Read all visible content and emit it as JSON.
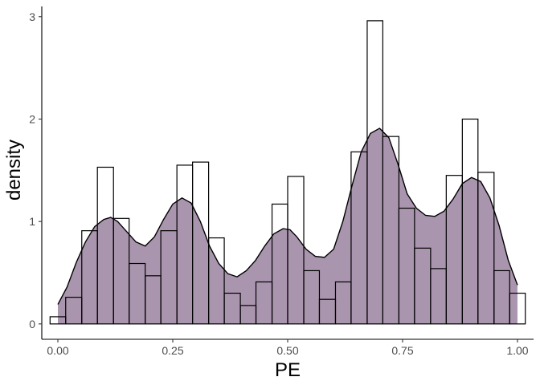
{
  "chart_data": {
    "type": "histogram-density",
    "title": "",
    "xlabel": "PE",
    "ylabel": "density",
    "xlim": [
      -0.035,
      1.035
    ],
    "ylim": [
      -0.15,
      3.1
    ],
    "x_ticks": [
      0.0,
      0.25,
      0.5,
      0.75,
      1.0
    ],
    "x_tick_labels": [
      "0.00",
      "0.25",
      "0.50",
      "0.75",
      "1.00"
    ],
    "y_ticks": [
      0,
      1,
      2,
      3
    ],
    "y_tick_labels": [
      "0",
      "1",
      "2",
      "3"
    ],
    "grid": false,
    "bin_width": 0.0345,
    "bins": [
      {
        "x0": -0.017,
        "x1": 0.017,
        "density": 0.07
      },
      {
        "x0": 0.017,
        "x1": 0.052,
        "density": 0.26
      },
      {
        "x0": 0.052,
        "x1": 0.086,
        "density": 0.91
      },
      {
        "x0": 0.086,
        "x1": 0.121,
        "density": 1.53
      },
      {
        "x0": 0.121,
        "x1": 0.155,
        "density": 1.03
      },
      {
        "x0": 0.155,
        "x1": 0.19,
        "density": 0.59
      },
      {
        "x0": 0.19,
        "x1": 0.224,
        "density": 0.47
      },
      {
        "x0": 0.224,
        "x1": 0.259,
        "density": 0.91
      },
      {
        "x0": 0.259,
        "x1": 0.293,
        "density": 1.55
      },
      {
        "x0": 0.293,
        "x1": 0.328,
        "density": 1.58
      },
      {
        "x0": 0.328,
        "x1": 0.362,
        "density": 0.84
      },
      {
        "x0": 0.362,
        "x1": 0.397,
        "density": 0.3
      },
      {
        "x0": 0.397,
        "x1": 0.431,
        "density": 0.18
      },
      {
        "x0": 0.431,
        "x1": 0.466,
        "density": 0.41
      },
      {
        "x0": 0.466,
        "x1": 0.5,
        "density": 1.17
      },
      {
        "x0": 0.5,
        "x1": 0.535,
        "density": 1.44
      },
      {
        "x0": 0.535,
        "x1": 0.569,
        "density": 0.52
      },
      {
        "x0": 0.569,
        "x1": 0.604,
        "density": 0.24
      },
      {
        "x0": 0.604,
        "x1": 0.638,
        "density": 0.41
      },
      {
        "x0": 0.638,
        "x1": 0.673,
        "density": 1.68
      },
      {
        "x0": 0.673,
        "x1": 0.707,
        "density": 2.96
      },
      {
        "x0": 0.707,
        "x1": 0.742,
        "density": 1.83
      },
      {
        "x0": 0.742,
        "x1": 0.776,
        "density": 1.13
      },
      {
        "x0": 0.776,
        "x1": 0.811,
        "density": 0.74
      },
      {
        "x0": 0.811,
        "x1": 0.845,
        "density": 0.54
      },
      {
        "x0": 0.845,
        "x1": 0.88,
        "density": 1.45
      },
      {
        "x0": 0.88,
        "x1": 0.914,
        "density": 2.0
      },
      {
        "x0": 0.914,
        "x1": 0.949,
        "density": 1.48
      },
      {
        "x0": 0.949,
        "x1": 0.983,
        "density": 0.52
      },
      {
        "x0": 0.983,
        "x1": 1.017,
        "density": 0.3
      }
    ],
    "density_curve": {
      "fill_color": "#9b82a0",
      "fill_opacity": 0.85,
      "x": [
        0.0,
        0.02,
        0.04,
        0.06,
        0.08,
        0.1,
        0.115,
        0.13,
        0.15,
        0.17,
        0.19,
        0.21,
        0.23,
        0.25,
        0.27,
        0.29,
        0.31,
        0.33,
        0.35,
        0.37,
        0.39,
        0.41,
        0.43,
        0.45,
        0.47,
        0.49,
        0.505,
        0.52,
        0.54,
        0.56,
        0.58,
        0.6,
        0.62,
        0.64,
        0.66,
        0.68,
        0.7,
        0.72,
        0.74,
        0.76,
        0.78,
        0.8,
        0.82,
        0.84,
        0.86,
        0.88,
        0.9,
        0.92,
        0.94,
        0.96,
        0.98,
        1.0
      ],
      "y": [
        0.19,
        0.36,
        0.6,
        0.8,
        0.95,
        1.02,
        1.04,
        1.0,
        0.9,
        0.8,
        0.76,
        0.85,
        1.02,
        1.17,
        1.23,
        1.18,
        1.0,
        0.76,
        0.59,
        0.49,
        0.46,
        0.52,
        0.62,
        0.76,
        0.88,
        0.93,
        0.92,
        0.85,
        0.73,
        0.66,
        0.65,
        0.73,
        1.0,
        1.35,
        1.68,
        1.86,
        1.91,
        1.82,
        1.56,
        1.27,
        1.13,
        1.06,
        1.05,
        1.1,
        1.22,
        1.37,
        1.43,
        1.39,
        1.23,
        0.96,
        0.62,
        0.38
      ]
    }
  }
}
